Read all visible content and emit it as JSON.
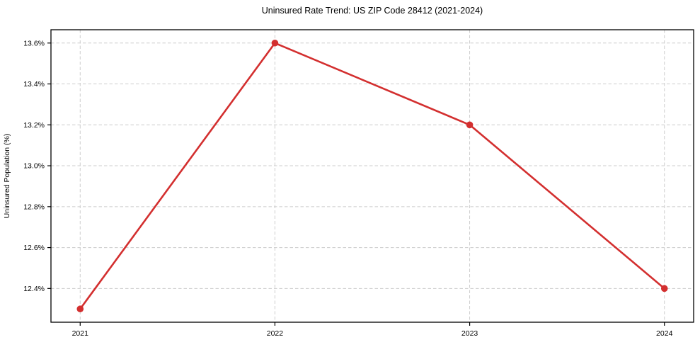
{
  "figure": {
    "background": "#ffffff"
  },
  "chart_data": {
    "type": "line",
    "title": "Uninsured Rate Trend: US ZIP Code 28412 (2021-2024)",
    "xlabel": "",
    "ylabel": "Uninsured Population (%)",
    "x": [
      2021,
      2022,
      2023,
      2024
    ],
    "values": [
      12.3,
      13.6,
      13.2,
      12.4
    ],
    "xticks": {
      "values": [
        2021,
        2022,
        2023,
        2024
      ],
      "labels": [
        "2021",
        "2022",
        "2023",
        "2024"
      ]
    },
    "yticks": {
      "values": [
        12.4,
        12.6,
        12.8,
        13.0,
        13.2,
        13.4,
        13.6
      ],
      "labels": [
        "12.4%",
        "12.6%",
        "12.8%",
        "13.0%",
        "13.2%",
        "13.4%",
        "13.6%"
      ]
    },
    "xlim": [
      2020.85,
      2024.15
    ],
    "ylim": [
      12.235,
      13.665
    ],
    "grid": true,
    "grid_style": "dashed",
    "legend": false,
    "line_color": "#d32f2f",
    "marker_color": "#d32f2f",
    "marker": "circle",
    "grid_color": "#cccccc",
    "spine_color": "#000000",
    "text_color": "#000000"
  }
}
